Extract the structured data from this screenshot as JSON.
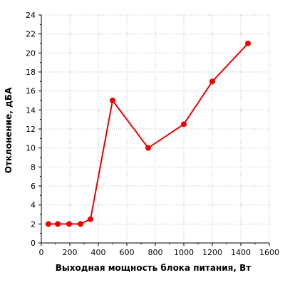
{
  "chart_data": {
    "type": "line",
    "xlabel": "Выходная мощность блока питания, Вт",
    "ylabel": "Отклонение, дБА",
    "xlim": [
      0,
      1600
    ],
    "ylim": [
      0,
      24
    ],
    "x_ticks": [
      0,
      200,
      400,
      600,
      800,
      1000,
      1200,
      1400,
      1600
    ],
    "y_ticks": [
      0,
      2,
      4,
      6,
      8,
      10,
      12,
      14,
      16,
      18,
      20,
      22,
      24
    ],
    "grid": true,
    "legend": "none",
    "series": [
      {
        "color": "#ee0000",
        "x": [
          50,
          115,
          195,
          275,
          345,
          500,
          750,
          1000,
          1200,
          1450
        ],
        "y": [
          2,
          2,
          2,
          2,
          2.5,
          15,
          10,
          12.5,
          17,
          21
        ]
      }
    ]
  }
}
